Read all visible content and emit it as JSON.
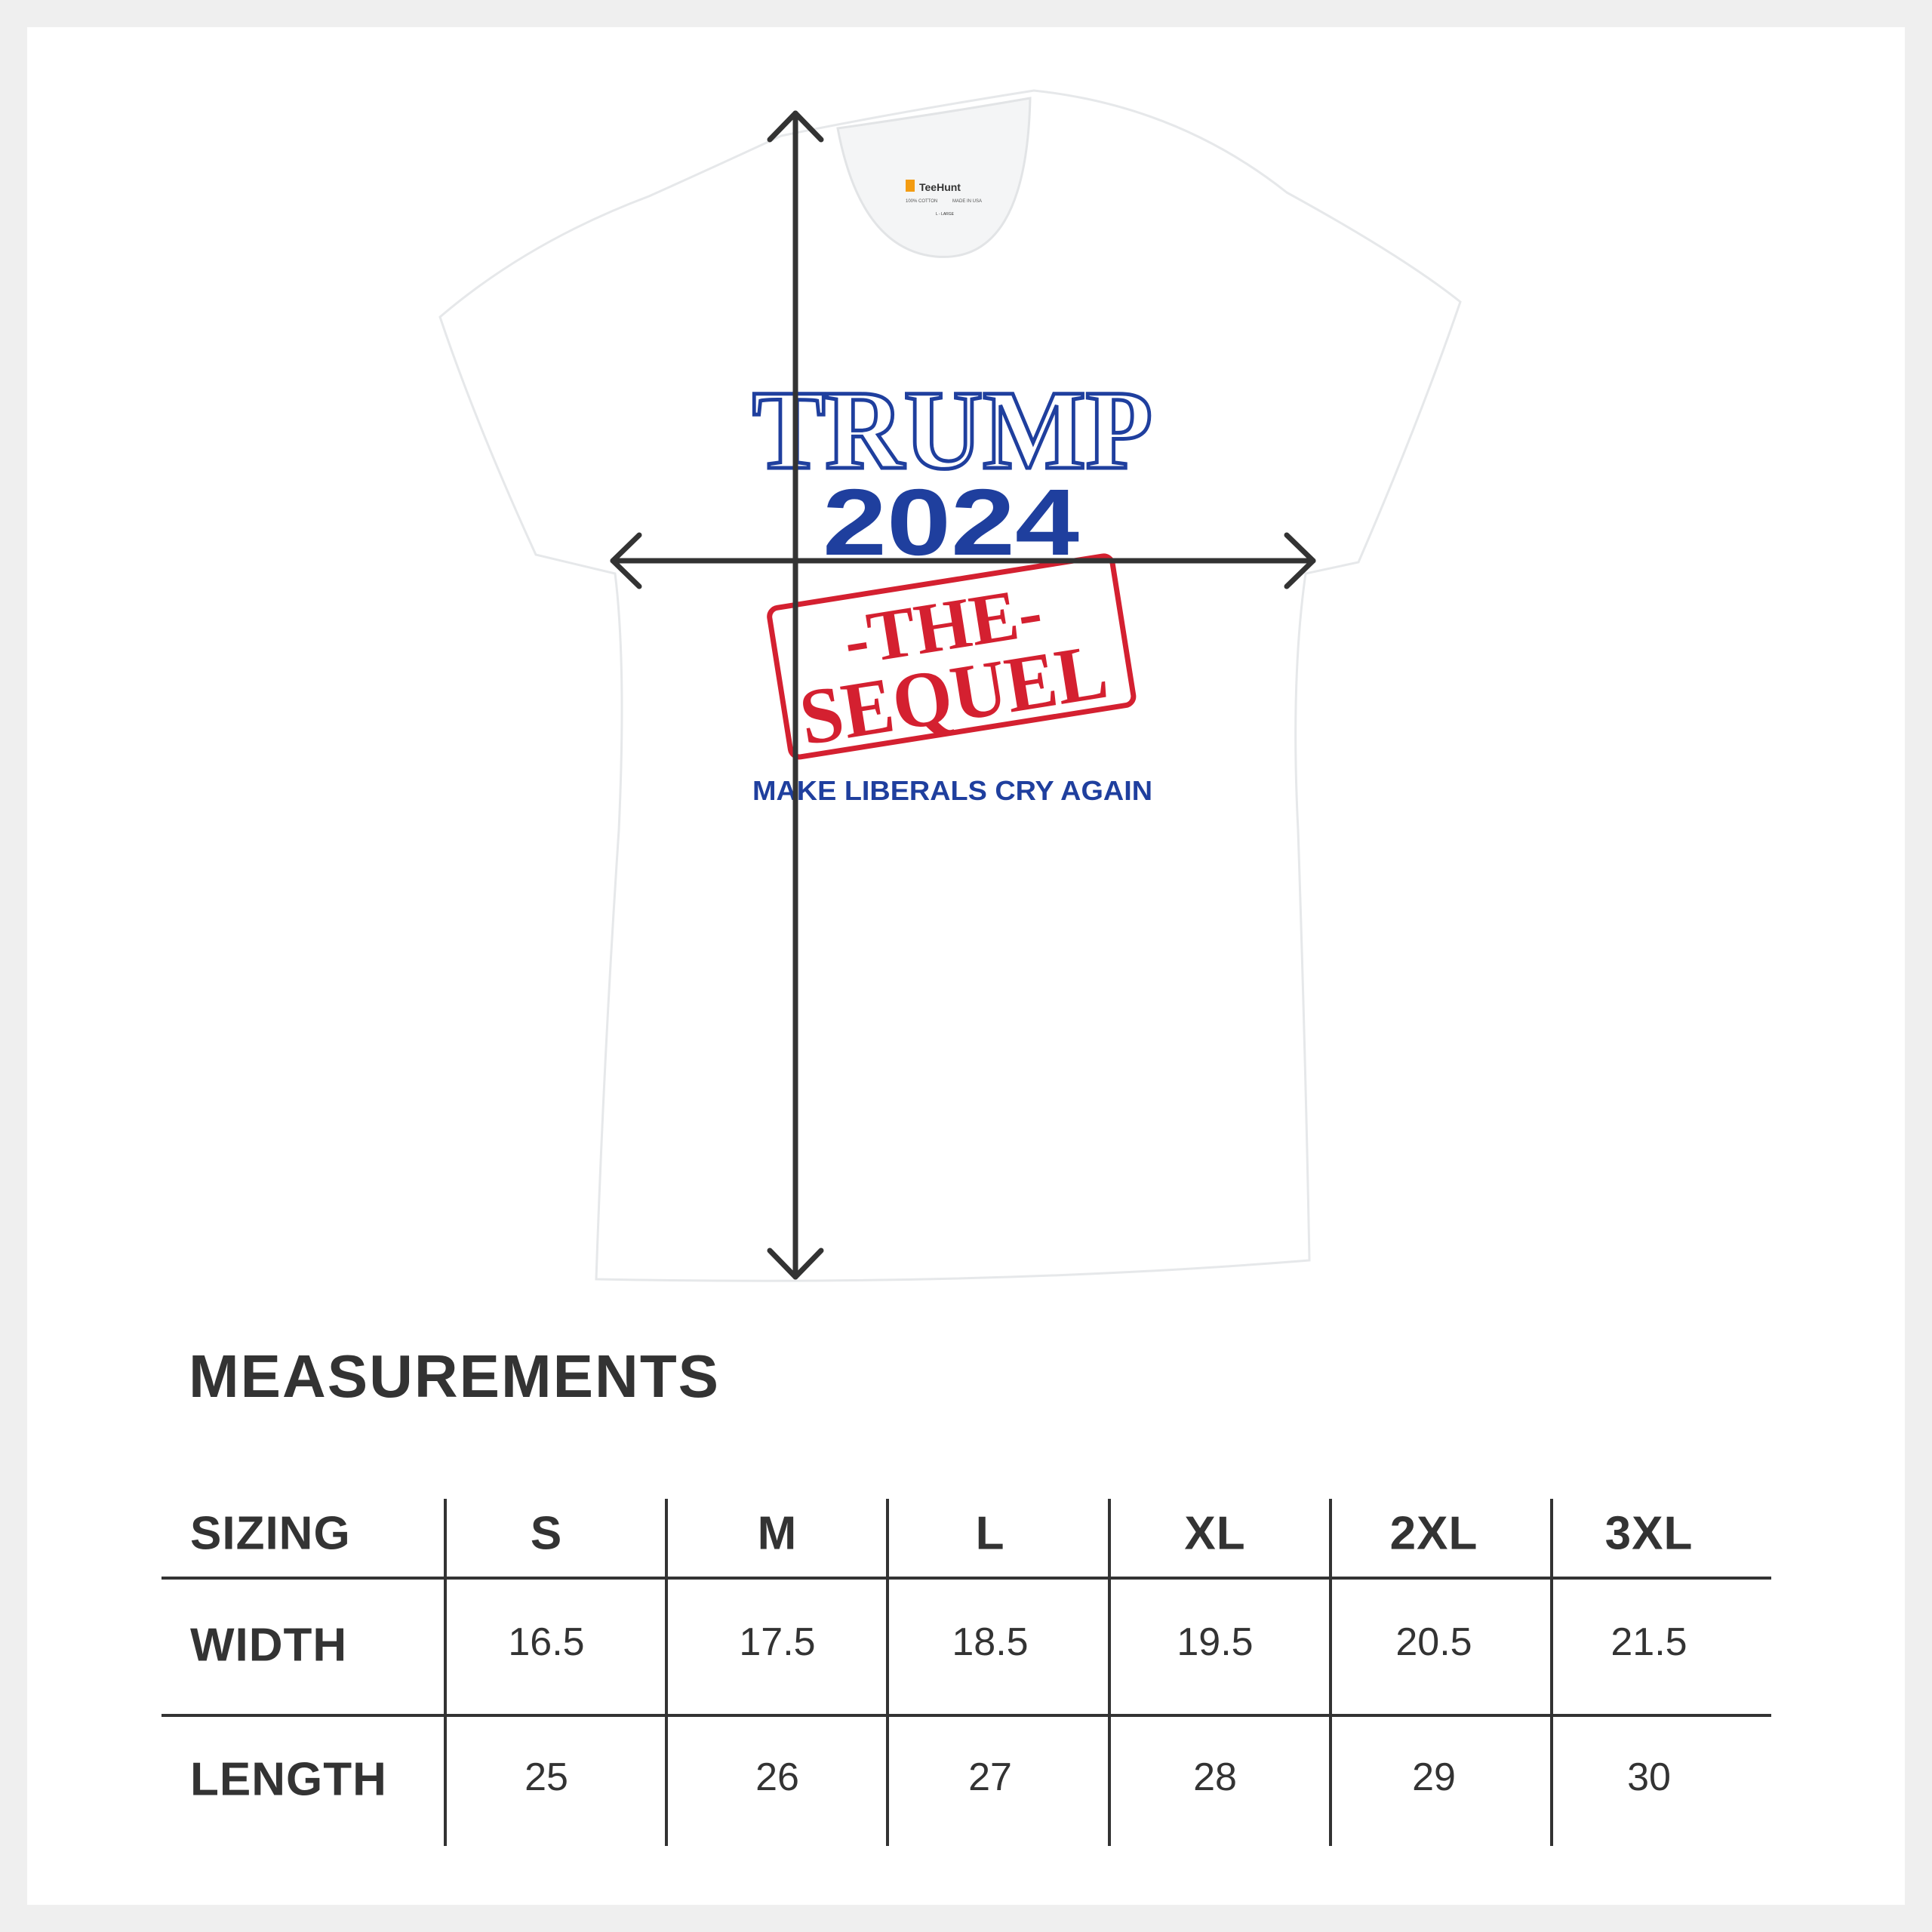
{
  "product": {
    "label_brand": "TeeHunt",
    "label_lines": [
      "100% COTTON",
      "MADE IN USA"
    ],
    "label_size": "L - LARGE",
    "design": {
      "line1": "TRUMP",
      "line2": "2024",
      "stamp_line1": "-THE-",
      "stamp_line2": "SEQUEL",
      "tagline": "MAKE LIBERALS CRY AGAIN"
    },
    "colors": {
      "shirt": "#ffffff",
      "blue": "#1f3f9e",
      "red": "#d42030",
      "arrow": "#333333"
    }
  },
  "measurements": {
    "title": "MEASUREMENTS",
    "header": {
      "label": "SIZING",
      "sizes": [
        "S",
        "M",
        "L",
        "XL",
        "2XL",
        "3XL"
      ]
    },
    "rows": [
      {
        "label": "WIDTH",
        "values": [
          "16.5",
          "17.5",
          "18.5",
          "19.5",
          "20.5",
          "21.5"
        ]
      },
      {
        "label": "LENGTH",
        "values": [
          "25",
          "26",
          "27",
          "28",
          "29",
          "30"
        ]
      }
    ]
  }
}
